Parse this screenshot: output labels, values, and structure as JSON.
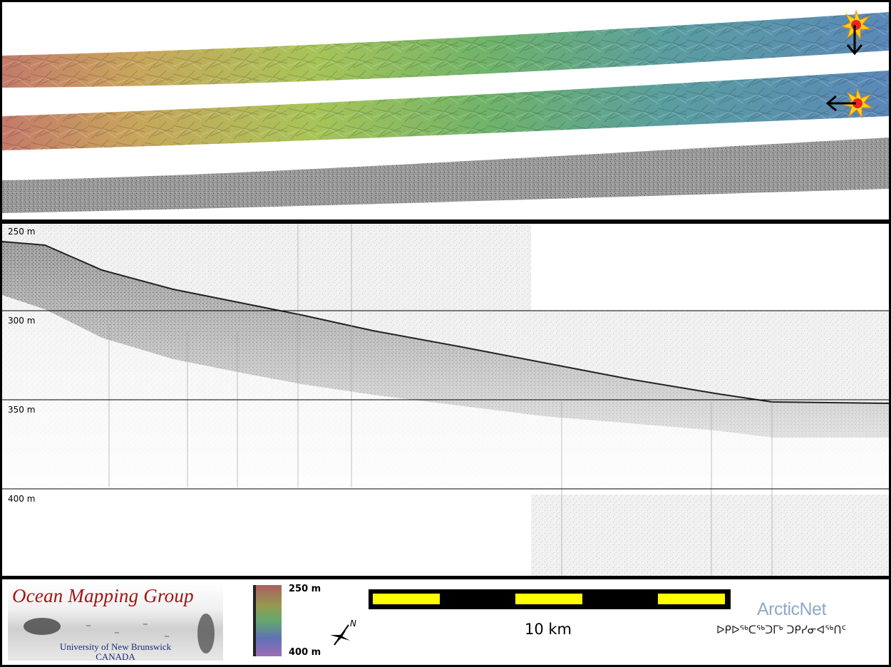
{
  "profile": {
    "depth_labels": [
      "250 m",
      "300 m",
      "350 m",
      "400 m"
    ]
  },
  "legend": {
    "org_title": "Ocean Mapping Group",
    "org_sub1": "University of New Brunswick",
    "org_sub2": "CANADA",
    "colorbar_top": "250 m",
    "colorbar_bottom": "400 m",
    "north_letter": "N",
    "scale_label": "10 km",
    "partner_title": "ArcticNet",
    "partner_syllabics": "ᐅᑭᐅᖅᑕᖅᑐᒥᒃ ᑐᑭᓯᓂᐊᖅᑎᑦ"
  },
  "colors": {
    "shallow": "#c98a6a",
    "mid": "#8fc24f",
    "deep": "#4f8aa6",
    "scale_yellow": "#ffff00",
    "org_red": "#a31414"
  },
  "icons": [
    "sun-icon",
    "arrow-down-icon",
    "arrow-left-icon",
    "north-arrow-icon"
  ]
}
